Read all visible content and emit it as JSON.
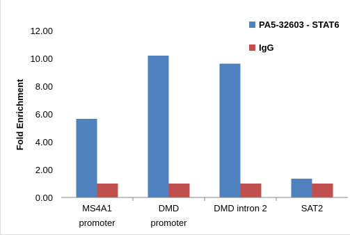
{
  "chart_data": {
    "type": "bar",
    "title": "",
    "xlabel": "",
    "ylabel": "Fold Enrichment",
    "ylim": [
      0,
      12
    ],
    "ytick_step": 2,
    "ytick_labels": [
      "0.00",
      "2.00",
      "4.00",
      "6.00",
      "8.00",
      "10.00",
      "12.00"
    ],
    "categories": [
      [
        "MS4A1",
        "promoter"
      ],
      [
        "DMD",
        "promoter"
      ],
      [
        "DMD intron 2"
      ],
      [
        "SAT2"
      ]
    ],
    "series": [
      {
        "name": "PA5-32603 - STAT6",
        "color": "#4f81bd",
        "values": [
          5.65,
          10.2,
          9.62,
          1.35
        ]
      },
      {
        "name": "IgG",
        "color": "#c0504d",
        "values": [
          1.0,
          1.0,
          1.0,
          1.0
        ]
      }
    ],
    "grid": false,
    "legend_position": "top-right"
  }
}
